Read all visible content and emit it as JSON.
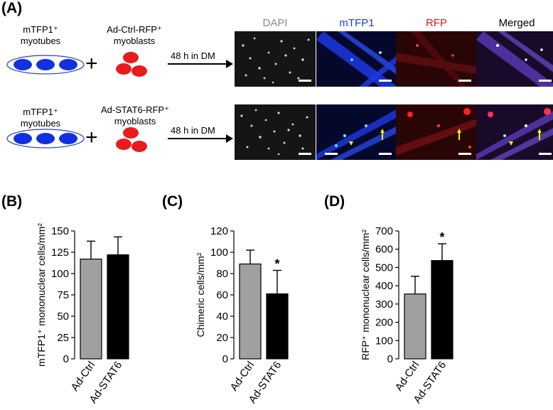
{
  "panels": {
    "a": "(A)",
    "b": "(B)",
    "c": "(C)",
    "d": "(D)"
  },
  "schematic": {
    "rows": [
      {
        "myotubes": "mTFP1⁺",
        "myotubes_sub": "myotubes",
        "myoblasts": "Ad-Ctrl-RFP⁺",
        "myoblasts_sub": "myoblasts",
        "arrow": "48 h in DM"
      },
      {
        "myotubes": "mTFP1⁺",
        "myotubes_sub": "myotubes",
        "myoblasts": "Ad-STAT6-RFP⁺",
        "myoblasts_sub": "myoblasts",
        "arrow": "48 h in DM"
      }
    ],
    "plus": "+"
  },
  "channels": [
    {
      "label": "DAPI",
      "color": "#8a8a8a"
    },
    {
      "label": "mTFP1",
      "color": "#1a3fd6"
    },
    {
      "label": "RFP",
      "color": "#e01818"
    },
    {
      "label": "Merged",
      "color": "#000000"
    }
  ],
  "chart_data": [
    {
      "type": "bar",
      "panel": "B",
      "categories": [
        "Ad-Ctrl",
        "Ad-STAT6"
      ],
      "values": [
        117,
        122
      ],
      "errors": [
        21,
        21
      ],
      "colors": [
        "#a0a0a0",
        "#000000"
      ],
      "ylabel": "mTFP1⁺ mononuclear cells/mm²",
      "ylim": [
        0,
        150
      ],
      "yticks": [
        0,
        25,
        50,
        75,
        100,
        125,
        150
      ],
      "significance": [
        "",
        ""
      ]
    },
    {
      "type": "bar",
      "panel": "C",
      "categories": [
        "Ad-Ctrl",
        "Ad-STAT6"
      ],
      "values": [
        89,
        61
      ],
      "errors": [
        13,
        22
      ],
      "colors": [
        "#a0a0a0",
        "#000000"
      ],
      "ylabel": "Chimeric cells/mm²",
      "ylim": [
        0,
        120
      ],
      "yticks": [
        0,
        20,
        40,
        60,
        80,
        100,
        120
      ],
      "significance": [
        "",
        "*"
      ]
    },
    {
      "type": "bar",
      "panel": "D",
      "categories": [
        "Ad-Ctrl",
        "Ad-STAT6"
      ],
      "values": [
        355,
        538
      ],
      "errors": [
        97,
        92
      ],
      "colors": [
        "#a0a0a0",
        "#000000"
      ],
      "ylabel": "RFP⁺ mononuclear cells/mm²",
      "ylim": [
        0,
        700
      ],
      "yticks": [
        0,
        100,
        200,
        300,
        400,
        500,
        600,
        700
      ],
      "significance": [
        "",
        "*"
      ]
    }
  ]
}
